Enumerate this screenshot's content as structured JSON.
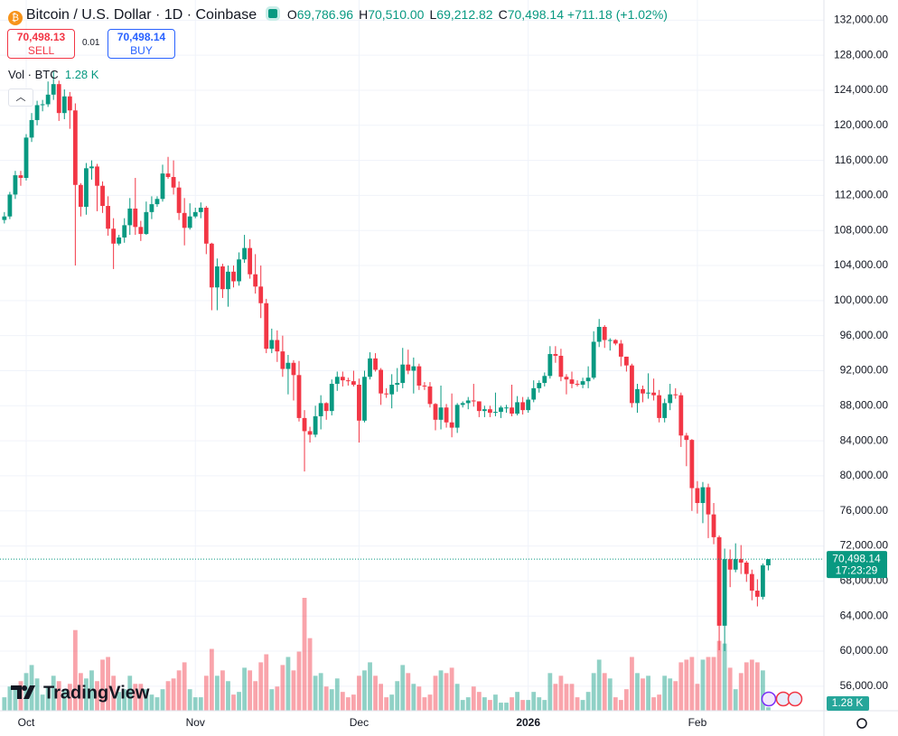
{
  "chart_data": {
    "type": "candlestick",
    "title": "Bitcoin / U.S. Dollar · 1D · Coinbase",
    "quote": {
      "keys": [
        "O",
        "H",
        "L",
        "C"
      ],
      "values": [
        "69,786.96",
        "70,510.00",
        "69,212.82",
        "70,498.14"
      ],
      "change": "+711.18 (+1.02%)"
    },
    "trade": {
      "sell_price": "70,498.13",
      "sell": "SELL",
      "spread": "0.01",
      "buy_price": "70,498.14",
      "buy": "BUY"
    },
    "price_badge": {
      "label": "70,498.14",
      "timer": "17:23:29"
    },
    "watermark": "TradingView",
    "up_color": "#089981",
    "down_color": "#f23645",
    "categories": [
      null,
      null,
      null,
      null,
      "Oct",
      null,
      null,
      null,
      null,
      null,
      null,
      null,
      null,
      null,
      null,
      null,
      null,
      null,
      null,
      null,
      null,
      null,
      null,
      null,
      null,
      null,
      null,
      null,
      null,
      null,
      null,
      null,
      null,
      null,
      null,
      "Nov",
      null,
      null,
      null,
      null,
      null,
      null,
      null,
      null,
      null,
      null,
      null,
      null,
      null,
      null,
      null,
      null,
      null,
      null,
      null,
      null,
      null,
      null,
      null,
      null,
      null,
      null,
      null,
      null,
      null,
      "Dec",
      null,
      null,
      null,
      null,
      null,
      null,
      null,
      null,
      null,
      null,
      null,
      null,
      null,
      null,
      null,
      null,
      null,
      null,
      null,
      null,
      null,
      null,
      null,
      null,
      null,
      null,
      null,
      null,
      null,
      null,
      "2026",
      null,
      null,
      null,
      null,
      null,
      null,
      null,
      null,
      null,
      null,
      null,
      null,
      null,
      null,
      null,
      null,
      null,
      null,
      null,
      null,
      null,
      null,
      null,
      null,
      null,
      null,
      null,
      null,
      null,
      null,
      "Feb",
      null,
      null,
      null,
      null,
      null,
      null,
      null,
      null,
      null,
      null,
      null,
      null,
      null
    ],
    "open": [
      109200,
      109600,
      112100,
      114300,
      114000,
      118600,
      120600,
      122300,
      122400,
      123500,
      124700,
      121400,
      123300,
      121700,
      113200,
      110700,
      115100,
      115300,
      113100,
      110800,
      108200,
      106500,
      107200,
      108600,
      110500,
      108400,
      107600,
      110100,
      111000,
      111600,
      114500,
      114100,
      112900,
      110000,
      108300,
      109600,
      110100,
      110600,
      106500,
      101500,
      103900,
      101300,
      103300,
      102200,
      104700,
      106000,
      103000,
      101600,
      99700,
      94500,
      95500,
      94200,
      92200,
      92900,
      91500,
      86600,
      85100,
      84700,
      86800,
      88300,
      87400,
      90500,
      91300,
      90900,
      90800,
      90400,
      86300,
      91300,
      93400,
      92100,
      89400,
      89300,
      90400,
      90600,
      92700,
      92000,
      92500,
      90300,
      90200,
      88200,
      86400,
      87800,
      86100,
      85500,
      88100,
      88300,
      88600,
      88500,
      87400,
      87600,
      87200,
      87300,
      87800,
      87800,
      87100,
      88400,
      87500,
      88700,
      90000,
      90600,
      91400,
      93900,
      93700,
      91300,
      91000,
      90500,
      90400,
      90800,
      91200,
      95300,
      97000,
      95500,
      95500,
      95100,
      93600,
      92600,
      88300,
      89900,
      89400,
      89500,
      89200,
      86600,
      88300,
      89300,
      89200,
      84600,
      84100,
      78600,
      76900,
      78700,
      75600,
      73000,
      62900,
      70500,
      69300,
      70500,
      70100,
      68800,
      66900,
      66200,
      69786.96
    ],
    "high": [
      110100,
      112400,
      114800,
      114800,
      119000,
      121400,
      122800,
      122900,
      125000,
      126200,
      125100,
      124100,
      123800,
      122500,
      113400,
      115700,
      116000,
      115600,
      113600,
      111900,
      109400,
      107500,
      109400,
      111700,
      114000,
      109100,
      111300,
      111900,
      111900,
      115500,
      116400,
      116000,
      113600,
      111700,
      111100,
      110600,
      111200,
      110800,
      106600,
      104800,
      104200,
      104000,
      104000,
      105500,
      107500,
      107000,
      105300,
      104000,
      100200,
      96800,
      96600,
      96000,
      93800,
      93200,
      93100,
      87500,
      85600,
      88000,
      89200,
      88400,
      91000,
      91900,
      91900,
      91200,
      92000,
      91100,
      92000,
      94100,
      94000,
      92300,
      90000,
      91600,
      92300,
      94600,
      94400,
      93500,
      92800,
      90700,
      90700,
      88300,
      90300,
      88200,
      89400,
      88300,
      88500,
      89000,
      90500,
      88500,
      88000,
      88000,
      89500,
      88000,
      88100,
      90400,
      89100,
      89000,
      89000,
      90900,
      90900,
      91800,
      94800,
      94800,
      94500,
      91600,
      91900,
      90900,
      91200,
      92500,
      96500,
      97900,
      97200,
      95700,
      95600,
      95500,
      93600,
      92800,
      90500,
      90300,
      91700,
      91100,
      89800,
      88800,
      90500,
      90000,
      89500,
      84900,
      84200,
      79400,
      79300,
      79100,
      76900,
      73200,
      71700,
      71600,
      72300,
      72100,
      70300,
      69300,
      68200,
      70000,
      70510
    ],
    "low": [
      108800,
      109300,
      111600,
      113100,
      113700,
      118100,
      120000,
      121600,
      122100,
      122900,
      120500,
      120700,
      119600,
      104000,
      109600,
      109800,
      113800,
      110200,
      110000,
      107400,
      103600,
      106300,
      106600,
      107500,
      107500,
      106800,
      107500,
      109300,
      110700,
      111300,
      113900,
      112100,
      109200,
      106300,
      108100,
      109400,
      109400,
      105300,
      98900,
      98900,
      100300,
      99300,
      101500,
      101700,
      104300,
      102500,
      100800,
      98000,
      94000,
      94000,
      93000,
      91300,
      89300,
      88600,
      86200,
      80500,
      83800,
      84400,
      85300,
      86400,
      86900,
      89700,
      90200,
      90300,
      90200,
      83800,
      86100,
      91000,
      91900,
      88100,
      88900,
      87700,
      89600,
      90000,
      91600,
      89400,
      89800,
      89800,
      87800,
      85200,
      85300,
      85500,
      84400,
      84900,
      87800,
      87600,
      87900,
      86700,
      86700,
      86700,
      86800,
      86600,
      87200,
      86800,
      86900,
      87000,
      87200,
      88400,
      89500,
      90200,
      91100,
      92900,
      90800,
      89300,
      90000,
      90200,
      90000,
      90000,
      91000,
      94700,
      94600,
      94300,
      94900,
      92500,
      91900,
      87800,
      87200,
      88400,
      88800,
      88600,
      86100,
      86100,
      87500,
      88800,
      83300,
      81100,
      76000,
      75700,
      74600,
      72900,
      72200,
      60100,
      60000,
      67300,
      69000,
      68800,
      67900,
      65800,
      65100,
      65900,
      69212.82
    ],
    "close": [
      109600,
      112100,
      114300,
      114000,
      118600,
      120600,
      122300,
      122400,
      123500,
      124700,
      121400,
      123300,
      121700,
      113200,
      110700,
      115100,
      115300,
      113100,
      110800,
      108200,
      106500,
      107200,
      108600,
      110500,
      108400,
      107600,
      110100,
      111000,
      111600,
      114500,
      114100,
      112900,
      110000,
      108300,
      109600,
      110100,
      110600,
      106500,
      101500,
      103900,
      101300,
      103300,
      102200,
      104700,
      106000,
      103000,
      101600,
      99700,
      94500,
      95500,
      94200,
      92200,
      92900,
      91500,
      86600,
      85100,
      84700,
      86800,
      88300,
      87400,
      90500,
      91300,
      90900,
      90800,
      90400,
      86300,
      91300,
      93400,
      92100,
      89400,
      89300,
      90400,
      90600,
      92700,
      92000,
      92500,
      90300,
      90200,
      88200,
      86400,
      87800,
      86100,
      85500,
      88100,
      88300,
      88600,
      88500,
      87400,
      87600,
      87200,
      87300,
      87800,
      87800,
      87100,
      88400,
      87500,
      88700,
      90000,
      90600,
      91400,
      93900,
      93700,
      91300,
      91000,
      90500,
      90400,
      90800,
      91200,
      95300,
      97000,
      95500,
      95500,
      95100,
      93600,
      92600,
      88300,
      89900,
      89400,
      89500,
      89200,
      86600,
      88300,
      89300,
      89200,
      84600,
      84100,
      78600,
      76900,
      78700,
      75600,
      73000,
      62900,
      70500,
      69300,
      70500,
      70100,
      68800,
      66900,
      66200,
      69786.96,
      70498.14
    ],
    "volume": {
      "label": "Vol · BTC",
      "last_label": "1.28 K",
      "values": [
        5000,
        9000,
        8000,
        11000,
        14000,
        17000,
        12000,
        6000,
        9000,
        13000,
        11000,
        8000,
        10000,
        30000,
        14000,
        12000,
        15000,
        11000,
        19000,
        20000,
        13000,
        7000,
        8000,
        13000,
        10000,
        10000,
        8000,
        6000,
        5000,
        8000,
        11000,
        12000,
        15000,
        18000,
        8000,
        5000,
        5000,
        13000,
        23000,
        13000,
        15000,
        11000,
        6000,
        7000,
        16000,
        15000,
        11000,
        18000,
        21000,
        8000,
        9000,
        17000,
        20000,
        15000,
        22000,
        42000,
        27000,
        13000,
        14000,
        9000,
        8000,
        12000,
        7000,
        5000,
        6000,
        13000,
        15000,
        18000,
        13000,
        10000,
        5000,
        6000,
        11000,
        17000,
        14000,
        10000,
        9000,
        5000,
        6000,
        13000,
        15000,
        14000,
        16000,
        10000,
        4000,
        5000,
        9000,
        7000,
        5000,
        4000,
        6000,
        3000,
        3000,
        5000,
        7000,
        4000,
        4000,
        7000,
        5000,
        4000,
        14000,
        10000,
        13000,
        10000,
        10000,
        5000,
        4000,
        7000,
        14000,
        19000,
        14000,
        12000,
        5000,
        4000,
        8000,
        20000,
        14000,
        12000,
        13000,
        5000,
        6000,
        13000,
        12000,
        11000,
        18000,
        19000,
        20000,
        10000,
        19000,
        20000,
        20000,
        26000,
        25000,
        16000,
        8000,
        14000,
        18000,
        19000,
        18000,
        15000,
        1280
      ]
    },
    "ylim": [
      53200,
      134300
    ],
    "yticks": [
      {
        "value": 132000,
        "label": "132,000.00"
      },
      {
        "value": 128000,
        "label": "128,000.00"
      },
      {
        "value": 124000,
        "label": "124,000.00"
      },
      {
        "value": 120000,
        "label": "120,000.00"
      },
      {
        "value": 116000,
        "label": "116,000.00"
      },
      {
        "value": 112000,
        "label": "112,000.00"
      },
      {
        "value": 108000,
        "label": "108,000.00"
      },
      {
        "value": 104000,
        "label": "104,000.00"
      },
      {
        "value": 100000,
        "label": "100,000.00"
      },
      {
        "value": 96000,
        "label": "96,000.00"
      },
      {
        "value": 92000,
        "label": "92,000.00"
      },
      {
        "value": 88000,
        "label": "88,000.00"
      },
      {
        "value": 84000,
        "label": "84,000.00"
      },
      {
        "value": 80000,
        "label": "80,000.00"
      },
      {
        "value": 76000,
        "label": "76,000.00"
      },
      {
        "value": 72000,
        "label": "72,000.00"
      },
      {
        "value": 68000,
        "label": "68,000.00"
      },
      {
        "value": 64000,
        "label": "64,000.00"
      },
      {
        "value": 60000,
        "label": "60,000.00"
      },
      {
        "value": 56000,
        "label": "56,000.00"
      }
    ],
    "grid": true
  }
}
